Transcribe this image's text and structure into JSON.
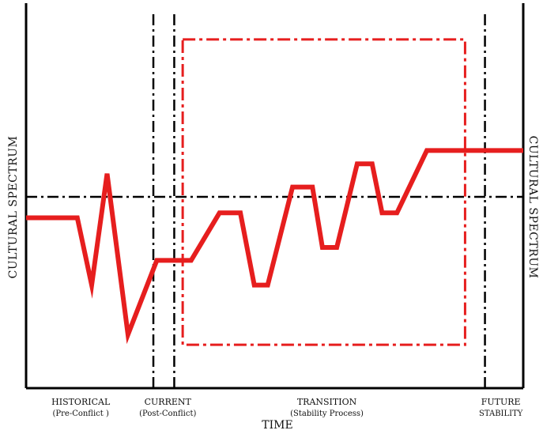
{
  "chart_data": {
    "type": "line",
    "ylabel_left": "CULTURAL SPECTRUM",
    "ylabel_right": "CULTURAL SPECTRUM",
    "xlabel": "TIME",
    "colors": {
      "line": "#e61e1e",
      "frame": "#e61e1e",
      "axes": "#000000",
      "guides": "#000000"
    },
    "xlim": [
      0,
      100
    ],
    "ylim": [
      0,
      100
    ],
    "phases": [
      {
        "label": "HISTORICAL",
        "sublabel": "(Pre-Conflict )",
        "x": 11
      },
      {
        "label": "CURRENT",
        "sublabel": "(Post-Conflict)",
        "x": 28.5
      },
      {
        "label": "TRANSITION",
        "sublabel": "(Stability Process)",
        "x": 60.5
      },
      {
        "label": "FUTURE",
        "sublabel": "STABILITY",
        "x": 95.5
      }
    ],
    "guides": {
      "vertical_x": [
        25.6,
        29.8,
        92.3
      ],
      "horizontal_y": 50.3
    },
    "transition_box": {
      "x0": 31.5,
      "x1": 88.3,
      "y0": 11.4,
      "y1": 91.7
    },
    "series": [
      {
        "values": [
          {
            "x": 0,
            "y": 44.8
          },
          {
            "x": 10.3,
            "y": 44.8
          },
          {
            "x": 13.2,
            "y": 27.1
          },
          {
            "x": 16.3,
            "y": 56.4
          },
          {
            "x": 20.5,
            "y": 14.1
          },
          {
            "x": 26.3,
            "y": 33.6
          },
          {
            "x": 33.2,
            "y": 33.6
          },
          {
            "x": 38.9,
            "y": 46.1
          },
          {
            "x": 43.1,
            "y": 46.1
          },
          {
            "x": 45.9,
            "y": 27.1
          },
          {
            "x": 48.6,
            "y": 27.1
          },
          {
            "x": 53.6,
            "y": 52.9
          },
          {
            "x": 57.6,
            "y": 52.9
          },
          {
            "x": 59.6,
            "y": 37.0
          },
          {
            "x": 62.5,
            "y": 37.0
          },
          {
            "x": 66.6,
            "y": 59.0
          },
          {
            "x": 69.6,
            "y": 59.0
          },
          {
            "x": 71.6,
            "y": 46.1
          },
          {
            "x": 74.6,
            "y": 46.1
          },
          {
            "x": 80.6,
            "y": 62.5
          },
          {
            "x": 100,
            "y": 62.5
          }
        ]
      }
    ]
  }
}
